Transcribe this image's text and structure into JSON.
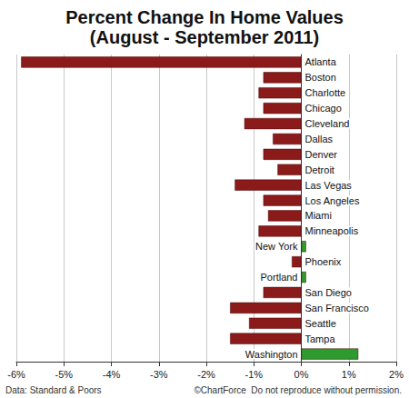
{
  "chart_data": {
    "type": "bar",
    "orientation": "horizontal",
    "title": "Percent Change In Home Values",
    "subtitle": "(August - September 2011)",
    "categories": [
      "Atlanta",
      "Boston",
      "Charlotte",
      "Chicago",
      "Cleveland",
      "Dallas",
      "Denver",
      "Detroit",
      "Las Vegas",
      "Los Angeles",
      "Miami",
      "Minneapolis",
      "New York",
      "Phoenix",
      "Portland",
      "San Diego",
      "San Francisco",
      "Seattle",
      "Tampa",
      "Washington"
    ],
    "values": [
      -5.9,
      -0.8,
      -0.9,
      -0.8,
      -1.2,
      -0.6,
      -0.8,
      -0.5,
      -1.4,
      -0.8,
      -0.7,
      -0.9,
      0.1,
      -0.2,
      0.1,
      -0.8,
      -1.5,
      -1.1,
      -1.5,
      1.2
    ],
    "colors": [
      "#8b1a1a",
      "#8b1a1a",
      "#8b1a1a",
      "#8b1a1a",
      "#8b1a1a",
      "#8b1a1a",
      "#8b1a1a",
      "#8b1a1a",
      "#8b1a1a",
      "#8b1a1a",
      "#8b1a1a",
      "#8b1a1a",
      "#2e9b2e",
      "#8b1a1a",
      "#2e9b2e",
      "#8b1a1a",
      "#8b1a1a",
      "#8b1a1a",
      "#8b1a1a",
      "#2e9b2e"
    ],
    "xlim": [
      -6,
      2
    ],
    "xticks": [
      {
        "value": -6,
        "label": "-6%"
      },
      {
        "value": -5,
        "label": "-5%"
      },
      {
        "value": -4,
        "label": "-4%"
      },
      {
        "value": -3,
        "label": "-3%"
      },
      {
        "value": -2,
        "label": "-2%"
      },
      {
        "value": -1,
        "label": "-1%"
      },
      {
        "value": 0,
        "label": "0%"
      },
      {
        "value": 1,
        "label": "1%"
      },
      {
        "value": 2,
        "label": "2%"
      }
    ],
    "grid": true,
    "annotations": [
      "Data: Standard & Poors",
      "©ChartForce  Do not reproduce without permission."
    ]
  }
}
